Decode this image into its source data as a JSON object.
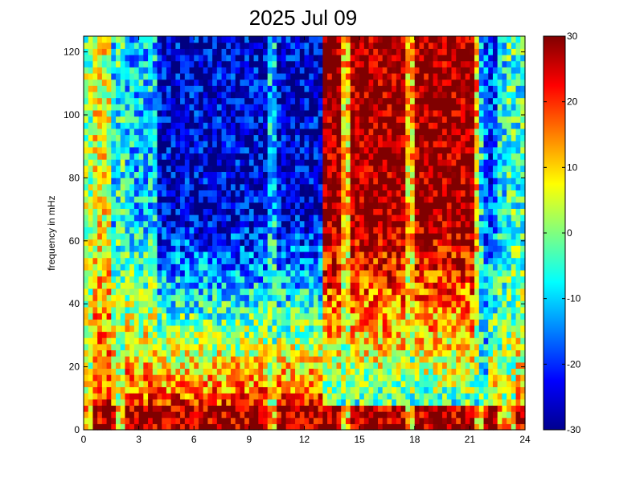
{
  "chart_data": {
    "type": "heatmap",
    "title": "2025 Jul 09",
    "xlabel": "",
    "ylabel": "frequency in mHz",
    "xlim": [
      0,
      24
    ],
    "ylim": [
      0,
      125
    ],
    "xticks": [
      "0",
      "3",
      "6",
      "9",
      "12",
      "15",
      "18",
      "21",
      "24"
    ],
    "yticks": [
      "0",
      "20",
      "40",
      "60",
      "80",
      "100",
      "120"
    ],
    "colorbar": {
      "range": [
        -30,
        30
      ],
      "ticks": [
        "30",
        "20",
        "10",
        "0",
        "-10",
        "-20",
        "-30"
      ],
      "colormap": "jet"
    },
    "grid": false,
    "z_description_levels": {
      "low_freq_band_0_10_mHz": 28,
      "evening_hours_13_22_high_freq": 30,
      "daytime_4_13_high_freq": -25
    }
  }
}
